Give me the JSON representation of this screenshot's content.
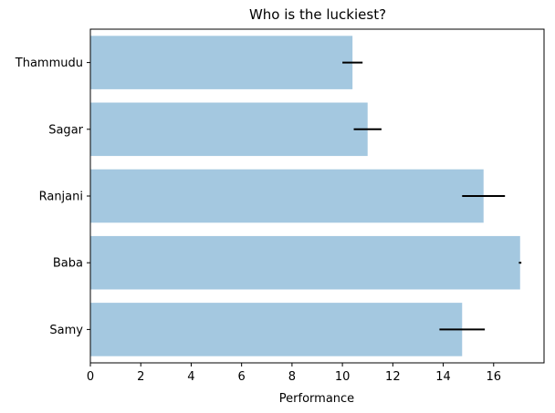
{
  "chart_data": {
    "type": "bar",
    "orientation": "horizontal",
    "title": "Who is the luckiest?",
    "xlabel": "Performance",
    "ylabel": "",
    "categories": [
      "Samy",
      "Baba",
      "Ranjani",
      "Sagar",
      "Thammudu"
    ],
    "values": [
      14.75,
      17.05,
      15.6,
      11.0,
      10.4
    ],
    "errors": [
      0.9,
      0.05,
      0.85,
      0.55,
      0.4
    ],
    "xlim": [
      0,
      18.0
    ],
    "xticks": [
      0,
      2,
      4,
      6,
      8,
      10,
      12,
      14,
      16
    ],
    "grid": false,
    "legend": "none",
    "bar_color": "#a4c8e0",
    "bar_alpha": 1,
    "error_color": "#000000"
  }
}
